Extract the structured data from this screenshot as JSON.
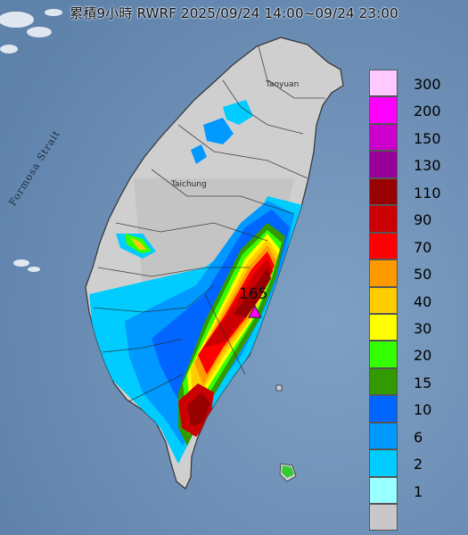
{
  "title": "累積9小時 RWRF 2025/09/24 14:00~09/24 23:00",
  "strait_label": "Formosa Strait",
  "places": [
    {
      "name": "Taoyuan",
      "label": "Taoyuan"
    },
    {
      "name": "Taichung",
      "label": "Taichung"
    }
  ],
  "max_value": "165",
  "legend": [
    {
      "label": "300",
      "color": "#ffc8ff"
    },
    {
      "label": "200",
      "color": "#ff00ff"
    },
    {
      "label": "150",
      "color": "#cc00cc"
    },
    {
      "label": "130",
      "color": "#990099"
    },
    {
      "label": "110",
      "color": "#990000"
    },
    {
      "label": "90",
      "color": "#cc0000"
    },
    {
      "label": "70",
      "color": "#ff0000"
    },
    {
      "label": "50",
      "color": "#ff9900"
    },
    {
      "label": "40",
      "color": "#ffcc00"
    },
    {
      "label": "30",
      "color": "#ffff00"
    },
    {
      "label": "20",
      "color": "#33ff00"
    },
    {
      "label": "15",
      "color": "#339900"
    },
    {
      "label": "10",
      "color": "#0066ff"
    },
    {
      "label": "6",
      "color": "#0099ff"
    },
    {
      "label": "2",
      "color": "#00ccff"
    },
    {
      "label": "1",
      "color": "#99ffff"
    },
    {
      "label": "",
      "color": "#c8c8c8"
    }
  ],
  "colors": {
    "sea": "#6e8fb4",
    "land": "#cfcfcf",
    "marker": "#ff00ff"
  }
}
